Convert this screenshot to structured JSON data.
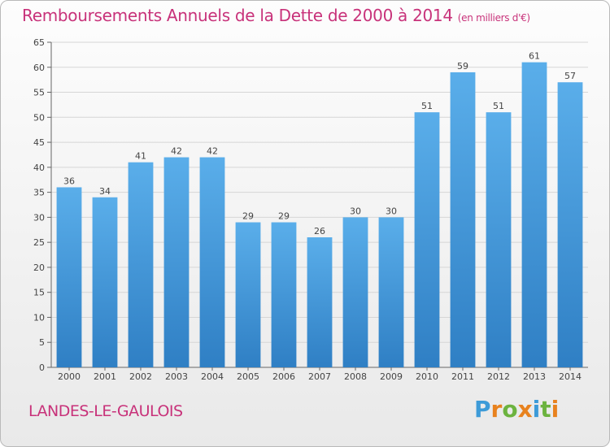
{
  "chart_data": {
    "type": "bar",
    "title": "Remboursements Annuels de la Dette de 2000 à 2014",
    "subtitle": "(en milliers d'€)",
    "categories": [
      "2000",
      "2001",
      "2002",
      "2003",
      "2004",
      "2005",
      "2006",
      "2007",
      "2008",
      "2009",
      "2010",
      "2011",
      "2012",
      "2013",
      "2014"
    ],
    "values": [
      36,
      34,
      41,
      42,
      42,
      29,
      29,
      26,
      30,
      30,
      51,
      59,
      51,
      61,
      57
    ],
    "ylim": [
      0,
      65
    ],
    "yticks": [
      0,
      5,
      10,
      15,
      20,
      25,
      30,
      35,
      40,
      45,
      50,
      55,
      60,
      65
    ],
    "grid": true,
    "bar_color": "#4a9ee0"
  },
  "footer": {
    "city": "LANDES-LE-GAULOIS",
    "logo_letters": [
      "P",
      "r",
      "o",
      "x",
      "i",
      "t",
      "i"
    ],
    "logo_colors": [
      "#3d9bd8",
      "#e8821e",
      "#6cb33f",
      "#e8821e",
      "#3d9bd8",
      "#6cb33f",
      "#e8821e"
    ]
  },
  "colors": {
    "accent": "#c8327a",
    "grid": "#d6d6d6"
  }
}
